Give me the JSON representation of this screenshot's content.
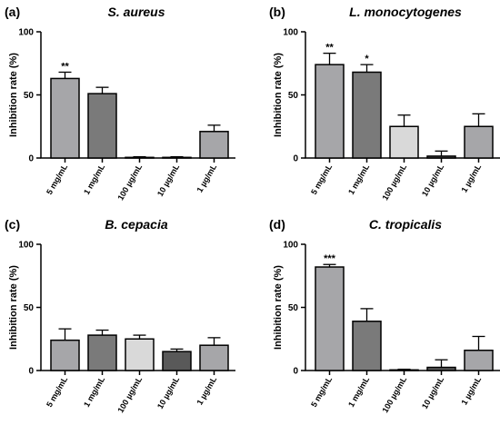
{
  "chart_data": [
    {
      "type": "bar",
      "panel_label": "(a)",
      "title": "S. aureus",
      "ylabel": "Inhibition rate (%)",
      "ylim": [
        0,
        100
      ],
      "yticks": [
        "0",
        "50",
        "100"
      ],
      "categories": [
        "5 mg/mL",
        "1 mg/mL",
        "100 µg/mL",
        "10 µg/mL",
        "1 µg/mL"
      ],
      "values": [
        63,
        51,
        0.5,
        0.5,
        21
      ],
      "errors": [
        5,
        5,
        0.5,
        0.5,
        5
      ],
      "significance": [
        "**",
        "",
        "",
        "",
        ""
      ],
      "bar_colors": [
        "#a6a6a9",
        "#7a7a7a",
        "#d9d9d9",
        "#595959",
        "#a6a6a9"
      ]
    },
    {
      "type": "bar",
      "panel_label": "(b)",
      "title": "L. monocytogenes",
      "ylabel": "Inhibition rate (%)",
      "ylim": [
        0,
        100
      ],
      "yticks": [
        "0",
        "50",
        "100"
      ],
      "categories": [
        "5 mg/mL",
        "1 mg/mL",
        "100 µg/mL",
        "10 µg/mL",
        "1 µg/mL"
      ],
      "values": [
        74,
        68,
        25,
        1.5,
        25
      ],
      "errors": [
        9,
        6,
        9,
        4,
        10
      ],
      "significance": [
        "**",
        "*",
        "",
        "",
        ""
      ],
      "bar_colors": [
        "#a6a6a9",
        "#7a7a7a",
        "#d9d9d9",
        "#595959",
        "#a6a6a9"
      ]
    },
    {
      "type": "bar",
      "panel_label": "(c)",
      "title": "B. cepacia",
      "ylabel": "Inhibition rate (%)",
      "ylim": [
        0,
        100
      ],
      "yticks": [
        "0",
        "50",
        "100"
      ],
      "categories": [
        "5 mg/mL",
        "1 mg/mL",
        "100 µg/mL",
        "10 µg/mL",
        "1 µg/mL"
      ],
      "values": [
        24,
        28,
        25,
        15,
        20
      ],
      "errors": [
        9,
        4,
        3,
        2,
        6
      ],
      "significance": [
        "",
        "",
        "",
        "",
        ""
      ],
      "bar_colors": [
        "#a6a6a9",
        "#7a7a7a",
        "#d9d9d9",
        "#595959",
        "#a6a6a9"
      ]
    },
    {
      "type": "bar",
      "panel_label": "(d)",
      "title": "C. tropicalis",
      "ylabel": "Inhibition rate (%)",
      "ylim": [
        0,
        100
      ],
      "yticks": [
        "0",
        "50",
        "100"
      ],
      "categories": [
        "5 mg/mL",
        "1 mg/mL",
        "100 µg/mL",
        "10 µg/mL",
        "1 µg/mL"
      ],
      "values": [
        82,
        39,
        0.5,
        2.5,
        16
      ],
      "errors": [
        2,
        10,
        0.5,
        6,
        11
      ],
      "significance": [
        "***",
        "",
        "",
        "",
        ""
      ],
      "bar_colors": [
        "#a6a6a9",
        "#7a7a7a",
        "#d9d9d9",
        "#595959",
        "#a6a6a9"
      ]
    }
  ]
}
